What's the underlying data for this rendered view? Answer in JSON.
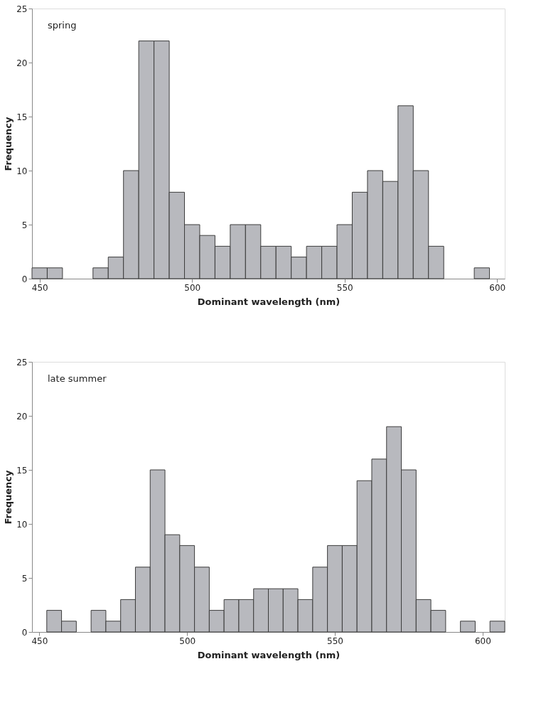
{
  "chart_data": [
    {
      "type": "histogram",
      "title": "spring",
      "xlabel": "Dominant wavelength (nm)",
      "ylabel": "Frequency",
      "bins": [
        447.5,
        452.5,
        457.5,
        462.5,
        467.5,
        472.5,
        477.5,
        482.5,
        487.5,
        492.5,
        497.5,
        502.5,
        507.5,
        512.5,
        517.5,
        522.5,
        527.5,
        532.5,
        537.5,
        542.5,
        547.5,
        552.5,
        557.5,
        562.5,
        567.5,
        572.5,
        577.5,
        582.5,
        587.5,
        592.5,
        597.5,
        602.5
      ],
      "values": [
        1,
        1,
        0,
        0,
        1,
        2,
        10,
        22,
        22,
        8,
        5,
        4,
        3,
        5,
        5,
        3,
        3,
        2,
        3,
        3,
        5,
        8,
        10,
        9,
        16,
        10,
        3,
        0,
        0,
        1,
        0
      ],
      "color": "#b8b9be",
      "xlim": [
        447.5,
        602.5
      ],
      "xticks": [
        450,
        500,
        550,
        600
      ],
      "ylim": [
        0,
        25
      ],
      "yticks": [
        0,
        5,
        10,
        15,
        20,
        25
      ],
      "grid": false
    },
    {
      "type": "histogram",
      "title": "late summer",
      "xlabel": "Dominant wavelength (nm)",
      "ylabel": "Frequency",
      "bins": [
        447.5,
        452.5,
        457.5,
        462.5,
        467.5,
        472.5,
        477.5,
        482.5,
        487.5,
        492.5,
        497.5,
        502.5,
        507.5,
        512.5,
        517.5,
        522.5,
        527.5,
        532.5,
        537.5,
        542.5,
        547.5,
        552.5,
        557.5,
        562.5,
        567.5,
        572.5,
        577.5,
        582.5,
        587.5,
        592.5,
        597.5,
        602.5,
        607.5
      ],
      "values": [
        0,
        2,
        1,
        0,
        2,
        1,
        3,
        6,
        15,
        9,
        8,
        6,
        2,
        3,
        3,
        4,
        4,
        4,
        3,
        6,
        8,
        8,
        14,
        16,
        19,
        15,
        3,
        2,
        0,
        1,
        0,
        1
      ],
      "color": "#b8b9be",
      "xlim": [
        447.5,
        607.5
      ],
      "xticks": [
        450,
        500,
        550,
        600
      ],
      "ylim": [
        0,
        25
      ],
      "yticks": [
        0,
        5,
        10,
        15,
        20,
        25
      ],
      "grid": false
    }
  ]
}
